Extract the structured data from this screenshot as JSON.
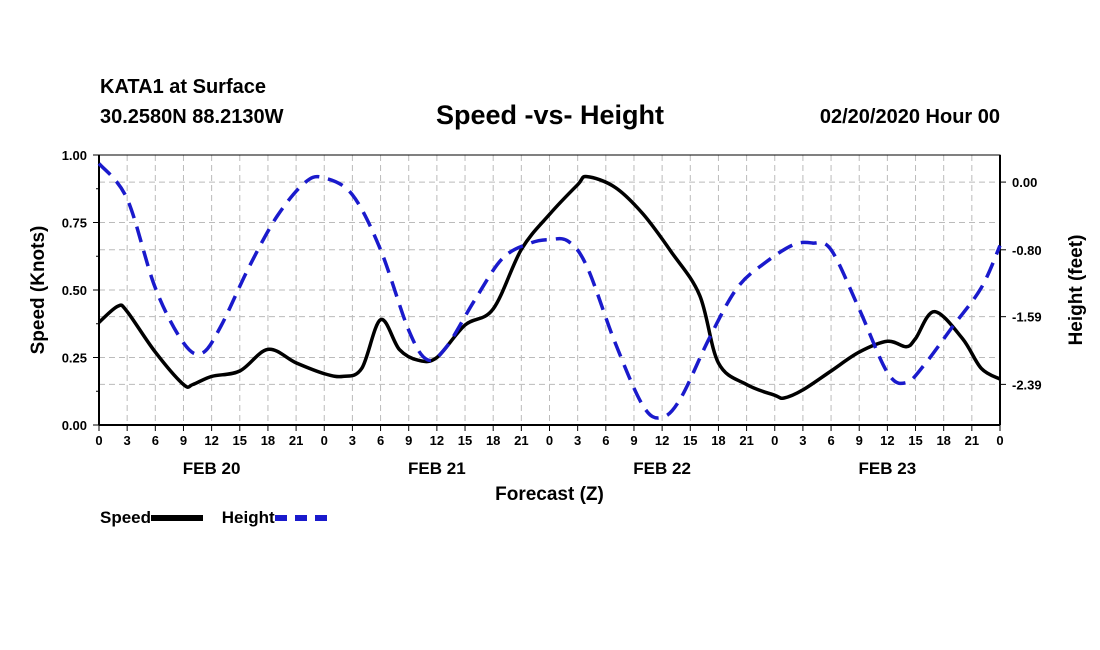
{
  "header": {
    "station": "KATA1 at Surface",
    "coords": "30.2580N 88.2130W",
    "title": "Speed -vs- Height",
    "date": "02/20/2020 Hour 00"
  },
  "legend": {
    "speed_label": "Speed",
    "height_label": "Height"
  },
  "colors": {
    "speed": "#000000",
    "height": "#1a1acc",
    "grid": "#bbbbbb"
  },
  "chart_data": {
    "type": "line",
    "title": "Speed -vs- Height",
    "xlabel": "Forecast (Z)",
    "ylabel_left": "Speed (Knots)",
    "ylabel_right": "Height (feet)",
    "x_range": [
      0,
      96
    ],
    "x_tick_step": 3,
    "x_tick_labels": [
      "0",
      "3",
      "6",
      "9",
      "12",
      "15",
      "18",
      "21",
      "0",
      "3",
      "6",
      "9",
      "12",
      "15",
      "18",
      "21",
      "0",
      "3",
      "6",
      "9",
      "12",
      "15",
      "18",
      "21",
      "0",
      "3",
      "6",
      "9",
      "12",
      "15",
      "18",
      "21",
      "0"
    ],
    "day_labels": [
      {
        "label": "FEB 20",
        "hour": 12
      },
      {
        "label": "FEB 21",
        "hour": 36
      },
      {
        "label": "FEB 22",
        "hour": 60
      },
      {
        "label": "FEB 23",
        "hour": 84
      }
    ],
    "ylim_left": [
      0,
      1
    ],
    "y_ticks_left": [
      {
        "value": 0,
        "label": "0.00"
      },
      {
        "value": 0.25,
        "label": "0.25"
      },
      {
        "value": 0.5,
        "label": "0.50"
      },
      {
        "value": 0.75,
        "label": "0.75"
      },
      {
        "value": 1,
        "label": "1.00"
      }
    ],
    "ylim_right": [
      -2.87,
      0.32
    ],
    "y_ticks_right": [
      {
        "value": 0.0,
        "label": "0.00"
      },
      {
        "value": -0.8,
        "label": "-0.80"
      },
      {
        "value": -1.59,
        "label": "-1.59"
      },
      {
        "value": -2.39,
        "label": "-2.39"
      }
    ],
    "grid": true,
    "series": [
      {
        "name": "Speed",
        "axis": "left",
        "style": "solid",
        "points": [
          [
            0,
            0.38
          ],
          [
            2,
            0.44
          ],
          [
            3,
            0.42
          ],
          [
            6,
            0.27
          ],
          [
            9,
            0.15
          ],
          [
            10,
            0.15
          ],
          [
            12,
            0.18
          ],
          [
            15,
            0.2
          ],
          [
            18,
            0.28
          ],
          [
            21,
            0.23
          ],
          [
            24,
            0.19
          ],
          [
            26,
            0.18
          ],
          [
            28,
            0.21
          ],
          [
            30,
            0.39
          ],
          [
            32,
            0.28
          ],
          [
            34,
            0.24
          ],
          [
            36,
            0.25
          ],
          [
            39,
            0.37
          ],
          [
            42,
            0.43
          ],
          [
            45,
            0.65
          ],
          [
            48,
            0.78
          ],
          [
            51,
            0.89
          ],
          [
            52,
            0.92
          ],
          [
            55,
            0.88
          ],
          [
            58,
            0.78
          ],
          [
            61,
            0.64
          ],
          [
            64,
            0.48
          ],
          [
            66,
            0.23
          ],
          [
            69,
            0.15
          ],
          [
            72,
            0.11
          ],
          [
            73,
            0.1
          ],
          [
            75,
            0.13
          ],
          [
            78,
            0.2
          ],
          [
            81,
            0.27
          ],
          [
            84,
            0.31
          ],
          [
            86,
            0.29
          ],
          [
            87,
            0.32
          ],
          [
            89,
            0.42
          ],
          [
            92,
            0.32
          ],
          [
            94,
            0.21
          ],
          [
            96,
            0.17
          ]
        ]
      },
      {
        "name": "Height",
        "axis": "right",
        "style": "dashed",
        "points": [
          [
            0,
            0.22
          ],
          [
            3,
            -0.2
          ],
          [
            6,
            -1.25
          ],
          [
            9,
            -1.9
          ],
          [
            11,
            -2.02
          ],
          [
            13,
            -1.7
          ],
          [
            16,
            -1.0
          ],
          [
            19,
            -0.4
          ],
          [
            22,
            0.0
          ],
          [
            24,
            0.05
          ],
          [
            27,
            -0.15
          ],
          [
            30,
            -0.8
          ],
          [
            33,
            -1.75
          ],
          [
            35,
            -2.1
          ],
          [
            37,
            -1.95
          ],
          [
            40,
            -1.4
          ],
          [
            43,
            -0.9
          ],
          [
            46,
            -0.72
          ],
          [
            48,
            -0.68
          ],
          [
            50,
            -0.7
          ],
          [
            52,
            -1.0
          ],
          [
            55,
            -1.9
          ],
          [
            58,
            -2.65
          ],
          [
            60,
            -2.78
          ],
          [
            62,
            -2.55
          ],
          [
            65,
            -1.85
          ],
          [
            68,
            -1.25
          ],
          [
            71,
            -0.95
          ],
          [
            74,
            -0.74
          ],
          [
            76,
            -0.72
          ],
          [
            78,
            -0.8
          ],
          [
            81,
            -1.5
          ],
          [
            84,
            -2.25
          ],
          [
            86,
            -2.37
          ],
          [
            88,
            -2.15
          ],
          [
            91,
            -1.7
          ],
          [
            94,
            -1.25
          ],
          [
            96,
            -0.75
          ]
        ]
      }
    ]
  }
}
